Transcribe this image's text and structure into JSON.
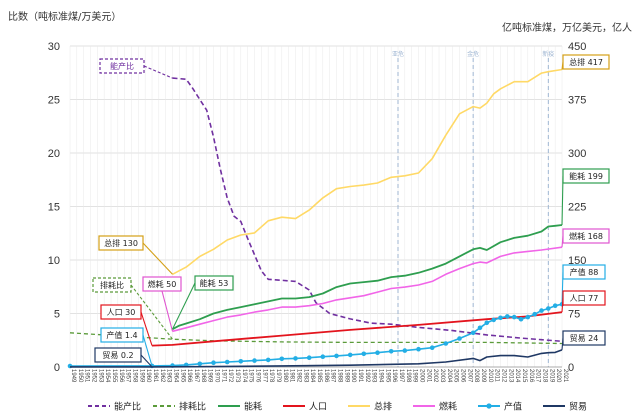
{
  "chart_data": {
    "type": "line",
    "y_left_title": "比数（吨标准煤/万美元）",
    "y_right_title": "亿吨标准煤，万亿美元，亿人",
    "ylim_left": [
      0,
      30
    ],
    "ylim_right": [
      0,
      450
    ],
    "yticks_left": [
      "0",
      "5",
      "10",
      "15",
      "20",
      "25",
      "30"
    ],
    "yticks_right": [
      "0",
      "75",
      "150",
      "225",
      "300",
      "375",
      "450"
    ],
    "x_start": 1949,
    "x_end": 2021,
    "events": [
      {
        "year": 1997,
        "label": "亚危"
      },
      {
        "year": 2008,
        "label": "金危"
      },
      {
        "year": 2019,
        "label": "新疫"
      }
    ],
    "series": [
      {
        "name": "能产比",
        "axis": "left",
        "color": "#7030a0",
        "dash": "5,3",
        "width": 1.6,
        "x": [
          1964,
          1966,
          1967,
          1968,
          1969,
          1970,
          1971,
          1972,
          1973,
          1974,
          1975,
          1976,
          1977,
          1978,
          1979,
          1980,
          1982,
          1984,
          1985,
          1987,
          1990,
          1993,
          1996,
          2000,
          2005,
          2010,
          2015,
          2018,
          2021
        ],
        "y": [
          27.0,
          26.9,
          26.0,
          25.0,
          24.0,
          21.5,
          18.5,
          15.8,
          14.1,
          13.6,
          12.0,
          10.5,
          9.0,
          8.2,
          8.15,
          8.1,
          8.0,
          7.2,
          6.0,
          5.0,
          4.5,
          4.1,
          4.0,
          3.7,
          3.4,
          3.0,
          2.7,
          2.55,
          2.4
        ]
      },
      {
        "name": "排耗比",
        "axis": "left",
        "color": "#5b9b3a",
        "dash": "4,3",
        "width": 1.3,
        "x": [
          1949,
          1964,
          1970,
          1980,
          1990,
          2000,
          2010,
          2021
        ],
        "y": [
          3.2,
          2.6,
          2.45,
          2.35,
          2.3,
          2.3,
          2.3,
          2.2
        ]
      },
      {
        "name": "能耗",
        "axis": "right",
        "color": "#2e9e4f",
        "dash": "",
        "width": 1.8,
        "x": [
          1964,
          1965,
          1966,
          1968,
          1970,
          1972,
          1974,
          1976,
          1978,
          1980,
          1982,
          1984,
          1986,
          1988,
          1990,
          1992,
          1994,
          1996,
          1998,
          2000,
          2002,
          2004,
          2006,
          2008,
          2009,
          2010,
          2012,
          2014,
          2016,
          2018,
          2019,
          2020,
          2021
        ],
        "y": [
          53,
          58,
          61,
          67,
          75,
          80,
          84,
          88,
          92,
          96,
          96,
          98,
          103,
          112,
          117,
          119,
          121,
          126,
          128,
          132,
          138,
          145,
          155,
          165,
          167,
          164,
          175,
          181,
          184,
          190,
          197,
          198,
          199
        ]
      },
      {
        "name": "人口",
        "axis": "right",
        "color": "#e3141d",
        "dash": "",
        "width": 1.8,
        "x": [
          1961,
          1964,
          1970,
          1980,
          1990,
          2000,
          2010,
          2016,
          2021
        ],
        "y": [
          30,
          31,
          36,
          44,
          52,
          59,
          67,
          71,
          77
        ]
      },
      {
        "name": "总排",
        "axis": "right",
        "color": "#ffd966",
        "dash": "",
        "width": 1.6,
        "x": [
          1964,
          1966,
          1968,
          1970,
          1972,
          1974,
          1976,
          1978,
          1980,
          1982,
          1984,
          1986,
          1988,
          1990,
          1992,
          1994,
          1996,
          1998,
          2000,
          2002,
          2004,
          2006,
          2008,
          2009,
          2010,
          2011,
          2012,
          2014,
          2016,
          2018,
          2019,
          2021
        ],
        "y": [
          130,
          140,
          155,
          165,
          178,
          185,
          188,
          205,
          210,
          208,
          220,
          237,
          250,
          253,
          255,
          258,
          266,
          268,
          272,
          292,
          325,
          355,
          365,
          363,
          370,
          383,
          390,
          400,
          400,
          412,
          414,
          417
        ]
      },
      {
        "name": "燃耗",
        "axis": "right",
        "color": "#f165e8",
        "dash": "",
        "width": 1.6,
        "x": [
          1964,
          1966,
          1968,
          1970,
          1972,
          1974,
          1976,
          1978,
          1980,
          1982,
          1984,
          1986,
          1988,
          1990,
          1992,
          1994,
          1996,
          1998,
          2000,
          2002,
          2004,
          2006,
          2008,
          2009,
          2010,
          2012,
          2014,
          2016,
          2018,
          2021
        ],
        "y": [
          50,
          55,
          60,
          65,
          70,
          73,
          77,
          80,
          84,
          84,
          86,
          89,
          94,
          97,
          100,
          105,
          110,
          112,
          115,
          120,
          130,
          138,
          145,
          147,
          146,
          155,
          160,
          162,
          164,
          168
        ]
      },
      {
        "name": "产值",
        "axis": "right",
        "color": "#23aee5",
        "dash": "",
        "width": 1.6,
        "marker": true,
        "x": [
          1949,
          1961,
          1964,
          1966,
          1968,
          1970,
          1972,
          1974,
          1976,
          1978,
          1980,
          1982,
          1984,
          1986,
          1988,
          1990,
          1992,
          1994,
          1996,
          1998,
          2000,
          2002,
          2004,
          2006,
          2008,
          2009,
          2010,
          2011,
          2012,
          2013,
          2014,
          2015,
          2016,
          2017,
          2018,
          2019,
          2020,
          2021
        ],
        "y": [
          1.4,
          1.5,
          2.0,
          3.0,
          4.5,
          6.0,
          7.0,
          8.0,
          9.0,
          10.0,
          11.5,
          12.0,
          13.0,
          14.5,
          15.5,
          17.0,
          18.5,
          20.0,
          22.0,
          23.0,
          25.0,
          27.0,
          33.0,
          40.0,
          48.0,
          55.0,
          62.0,
          66.0,
          69.0,
          71.0,
          70.0,
          67.0,
          70.0,
          74.0,
          79.0,
          82.0,
          86.0,
          88.0
        ]
      },
      {
        "name": "贸易",
        "axis": "right",
        "color": "#1f3864",
        "dash": "",
        "width": 1.6,
        "x": [
          1949,
          1961,
          1970,
          1980,
          1990,
          2000,
          2004,
          2008,
          2009,
          2010,
          2012,
          2014,
          2016,
          2018,
          2019,
          2020,
          2021
        ],
        "y": [
          0.2,
          0.2,
          0.5,
          1.5,
          2.5,
          4.5,
          7.0,
          12.0,
          9.0,
          14.0,
          16.0,
          16.0,
          14.0,
          19.0,
          20.0,
          20.5,
          24.0
        ]
      }
    ],
    "callouts": [
      {
        "text": "能产比",
        "color": "#7030a0",
        "border": "#7030a0",
        "dashed": true
      },
      {
        "text": "总排 130",
        "color": "#222222",
        "border": "#d4a017",
        "dashed": false
      },
      {
        "text": "排耗比",
        "color": "#222222",
        "border": "#5b9b3a",
        "dashed": true
      },
      {
        "text": "燃耗 50",
        "color": "#222222",
        "border": "#e055d0",
        "dashed": false
      },
      {
        "text": "能耗 53",
        "color": "#222222",
        "border": "#2e9e4f",
        "dashed": false
      },
      {
        "text": "人口 30",
        "color": "#222222",
        "border": "#e3141d",
        "dashed": false
      },
      {
        "text": "产值 1.4",
        "color": "#222222",
        "border": "#23aee5",
        "dashed": false
      },
      {
        "text": "贸易 0.2",
        "color": "#222222",
        "border": "#1f3864",
        "dashed": false
      },
      {
        "text": "总排 417",
        "color": "#222222",
        "border": "#d4a017",
        "dashed": false
      },
      {
        "text": "能耗 199",
        "color": "#222222",
        "border": "#2e9e4f",
        "dashed": false
      },
      {
        "text": "燃耗 168",
        "color": "#222222",
        "border": "#e055d0",
        "dashed": false
      },
      {
        "text": "产值 88",
        "color": "#222222",
        "border": "#23aee5",
        "dashed": false
      },
      {
        "text": "人口 77",
        "color": "#222222",
        "border": "#e3141d",
        "dashed": false
      },
      {
        "text": "贸易 24",
        "color": "#222222",
        "border": "#1f3864",
        "dashed": false
      }
    ],
    "legend": [
      {
        "name": "能产比",
        "color": "#7030a0",
        "dash": "4,3",
        "marker": false
      },
      {
        "name": "排耗比",
        "color": "#5b9b3a",
        "dash": "4,3",
        "marker": false
      },
      {
        "name": "能耗",
        "color": "#2e9e4f",
        "dash": "",
        "marker": false
      },
      {
        "name": "人口",
        "color": "#e3141d",
        "dash": "",
        "marker": false
      },
      {
        "name": "总排",
        "color": "#ffd966",
        "dash": "",
        "marker": false
      },
      {
        "name": "燃耗",
        "color": "#f165e8",
        "dash": "",
        "marker": false
      },
      {
        "name": "产值",
        "color": "#23aee5",
        "dash": "",
        "marker": true
      },
      {
        "name": "贸易",
        "color": "#1f3864",
        "dash": "",
        "marker": false
      }
    ]
  }
}
